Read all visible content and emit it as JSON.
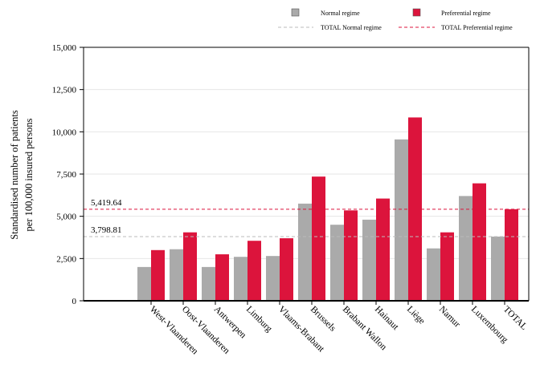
{
  "chart_data": {
    "type": "bar",
    "ylabel": [
      "Standardised number of patients",
      "per 100,000 insured persons"
    ],
    "ylim": [
      0,
      15000
    ],
    "yticks": [
      0,
      2500,
      5000,
      7500,
      10000,
      12500,
      15000
    ],
    "ytick_labels": [
      "0",
      "2,500",
      "5,000",
      "7,500",
      "10,000",
      "12,500",
      "15,000"
    ],
    "grid": "horizontal",
    "legend_position": "top-right",
    "categories": [
      "West-Vlaanderen",
      "Oost-Vlaanderen",
      "Antwerpen",
      "Limburg",
      "Vlaams-Brabant",
      "Brussels",
      "Brabant Wallon",
      "Hainaut",
      "Liège",
      "Namur",
      "Luxembourg",
      "TOTAL"
    ],
    "series": [
      {
        "name": "Normal regime",
        "color": "#aaaaaa",
        "values": [
          2000,
          3050,
          2000,
          2600,
          2650,
          5750,
          4500,
          4800,
          9550,
          3100,
          6200,
          3798.81
        ]
      },
      {
        "name": "Preferential regime",
        "color": "#dc143c",
        "values": [
          3000,
          4050,
          2750,
          3550,
          3700,
          7350,
          5350,
          6050,
          10850,
          4050,
          6950,
          5419.64
        ]
      }
    ],
    "reference_lines": [
      {
        "name": "TOTAL Normal regime",
        "value": 3798.81,
        "label": "3,798.81",
        "color": "#bbbbbb",
        "style": "dashed"
      },
      {
        "name": "TOTAL Preferential regime",
        "value": 5419.64,
        "label": "5,419.64",
        "color": "#dc143c",
        "style": "dashed"
      }
    ]
  }
}
